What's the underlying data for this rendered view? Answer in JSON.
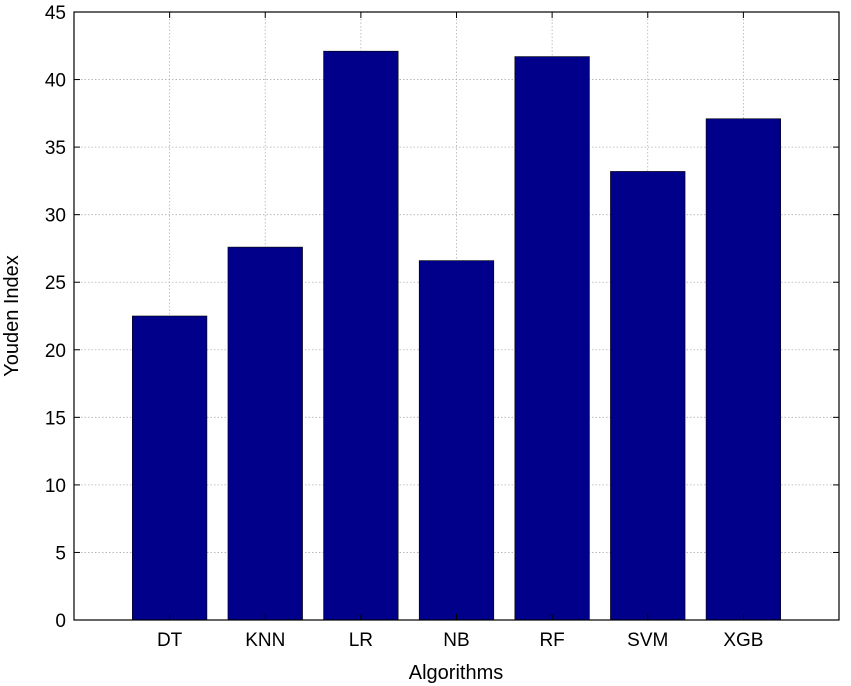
{
  "chart_data": {
    "type": "bar",
    "title": "",
    "xlabel": "Algorithms",
    "ylabel": "Youden Index",
    "categories": [
      "DT",
      "KNN",
      "LR",
      "NB",
      "RF",
      "SVM",
      "XGB"
    ],
    "values": [
      22.5,
      27.6,
      42.1,
      26.6,
      41.7,
      33.2,
      37.1
    ],
    "ylim": [
      0,
      45
    ],
    "yticks": [
      "0",
      "5",
      "10",
      "15",
      "20",
      "25",
      "30",
      "35",
      "40",
      "45"
    ],
    "grid": true,
    "legend": "none",
    "bar_color": "#00008B",
    "grid_color": "#b0b0b0"
  }
}
